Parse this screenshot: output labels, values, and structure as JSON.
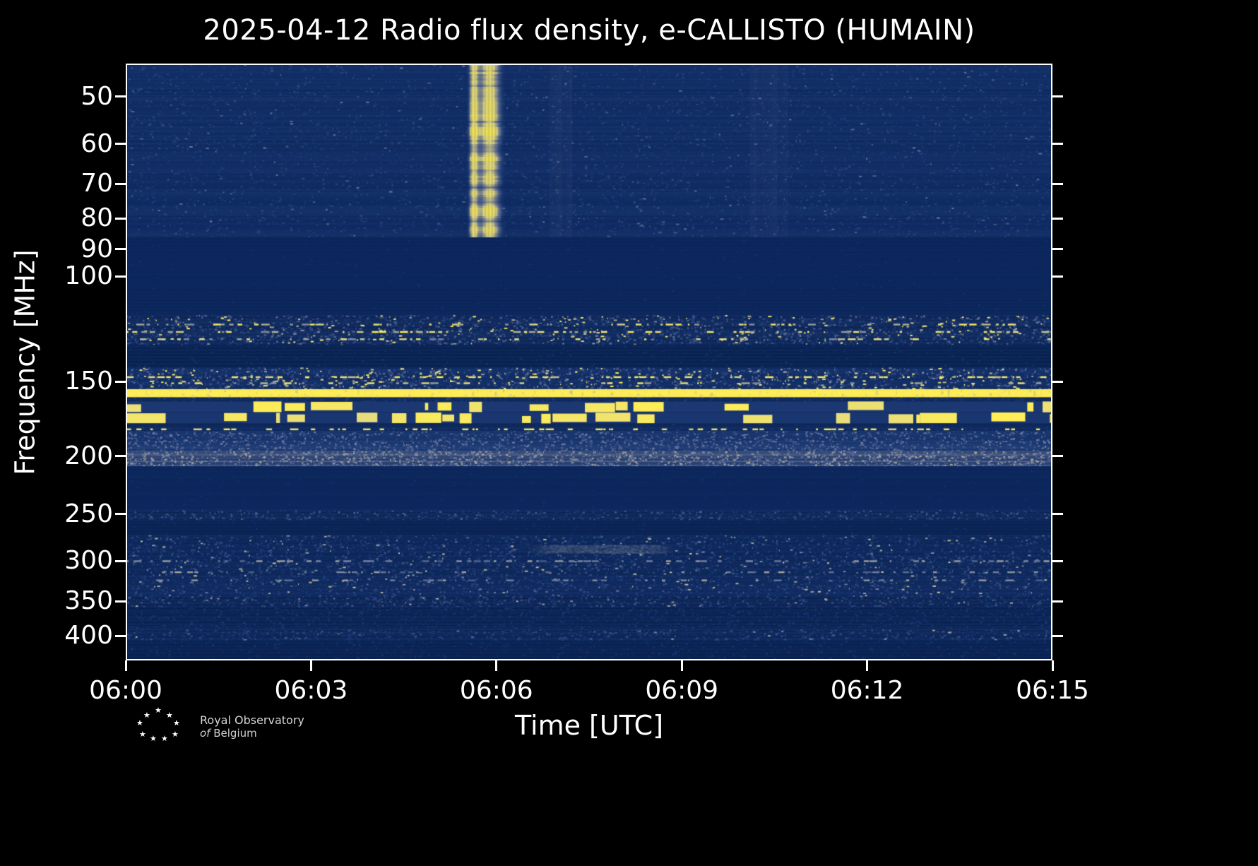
{
  "figure": {
    "title": "2025-04-12 Radio flux density, e-CALLISTO (HUMAIN)",
    "xlabel": "Time [UTC]",
    "ylabel": "Frequency [MHz]",
    "background": "#000000",
    "frame_color": "#ffffff",
    "text_color": "#ffffff"
  },
  "logo": {
    "name": "Royal Observatory of Belgium",
    "star_glyph": "★",
    "line1": "Royal Observatory",
    "line2_italic": "of",
    "line2_rest": "Belgium"
  },
  "chart_data": {
    "type": "heatmap",
    "subtype": "radio-spectrogram",
    "title": "2025-04-12 Radio flux density, e-CALLISTO (HUMAIN)",
    "xlabel": "Time [UTC]",
    "ylabel": "Frequency [MHz]",
    "legend": "none",
    "grid": false,
    "x_axis": {
      "range_minutes": [
        0,
        15
      ],
      "start_utc": "06:00",
      "end_utc": "06:15",
      "tick_minutes": [
        0,
        3,
        6,
        9,
        12,
        15
      ],
      "tick_labels": [
        "06:00",
        "06:03",
        "06:06",
        "06:09",
        "06:12",
        "06:15"
      ]
    },
    "y_axis": {
      "scale": "log",
      "range_mhz": [
        44,
        440
      ],
      "direction": "increasing-downward",
      "tick_labels_mhz": [
        50,
        60,
        70,
        80,
        90,
        100,
        150,
        200,
        250,
        300,
        350,
        400
      ]
    },
    "colormap": {
      "stops": [
        "#092459",
        "#1d3b76",
        "#7e86a4",
        "#e8dc7c",
        "#ffee55"
      ]
    },
    "bands": [
      {
        "name": "low-frequency mottled noise 44-86 MHz",
        "f": [
          44,
          86
        ],
        "base": 0.1,
        "row_jitter": 0.045,
        "noise": {
          "density": 0.25,
          "amp": 0.1
        },
        "speckles": {
          "density": 0.004,
          "t": [
            0.25,
            0.45
          ]
        }
      },
      {
        "name": "quiet 86-116 MHz",
        "f": [
          86,
          116
        ],
        "base": 0.05,
        "row_jitter": 0.012,
        "noise": {
          "density": 0.05,
          "amp": 0.04
        }
      },
      {
        "name": "interference band 116-130 MHz",
        "f": [
          116,
          130
        ],
        "base": 0.12,
        "row_jitter": 0.05,
        "noise": {
          "density": 0.5,
          "amp": 0.14
        },
        "speckles": {
          "density": 0.02,
          "t": [
            0.45,
            0.95
          ]
        },
        "dash_rows": [
          {
            "f": 120,
            "density": 0.45,
            "t": [
              0.5,
              0.95
            ]
          },
          {
            "f": 123.5,
            "density": 0.5,
            "t": [
              0.5,
              1.0
            ]
          },
          {
            "f": 127,
            "density": 0.35,
            "t": [
              0.45,
              0.85
            ]
          }
        ]
      },
      {
        "name": "quiet 130-142 MHz",
        "f": [
          130,
          142
        ],
        "base": 0.06,
        "row_jitter": 0.015,
        "noise": {
          "density": 0.08,
          "amp": 0.05
        }
      },
      {
        "name": "noise band 142-154 MHz",
        "f": [
          142,
          154.5
        ],
        "base": 0.13,
        "row_jitter": 0.05,
        "noise": {
          "density": 0.55,
          "amp": 0.15
        },
        "speckles": {
          "density": 0.03,
          "t": [
            0.5,
            1.0
          ]
        },
        "dash_rows": [
          {
            "f": 147,
            "density": 0.5,
            "t": [
              0.65,
              1.0
            ]
          },
          {
            "f": 150.5,
            "density": 0.3,
            "t": [
              0.5,
              0.9
            ]
          }
        ]
      },
      {
        "name": "continuous bright carrier ~157 MHz",
        "f": [
          154.5,
          159.5
        ],
        "style": "solid",
        "base": 0.96,
        "flicker": 0.25
      },
      {
        "name": "gap 159-162 MHz",
        "f": [
          159.5,
          162
        ],
        "base": 0.12,
        "row_jitter": 0.03,
        "noise": {
          "density": 0.3,
          "amp": 0.08
        }
      },
      {
        "name": "intermittent strong blocks 162-169 MHz",
        "f": [
          162,
          169
        ],
        "style": "blocks",
        "base": 0.22,
        "block_t": [
          0.78,
          1.0
        ],
        "on_prob": 0.55
      },
      {
        "name": "intermittent strong blocks 169-176 MHz",
        "f": [
          169,
          176.5
        ],
        "style": "blocks",
        "base": 0.2,
        "block_t": [
          0.75,
          1.0
        ],
        "on_prob": 0.5
      },
      {
        "name": "quiet sliver 176-178 MHz",
        "f": [
          176.5,
          178.5
        ],
        "base": 0.08,
        "row_jitter": 0.02,
        "noise": {
          "density": 0.1,
          "amp": 0.05
        }
      },
      {
        "name": "dashed carrier ~180 MHz",
        "f": [
          178.5,
          181.5
        ],
        "base": 0.1,
        "row_jitter": 0.02,
        "noise": {
          "density": 0.3,
          "amp": 0.08
        },
        "dash_rows": [
          {
            "f": 179.8,
            "density": 0.55,
            "t": [
              0.7,
              1.0
            ]
          }
        ]
      },
      {
        "name": "grey noise 182-196 MHz",
        "f": [
          181.5,
          196
        ],
        "base": 0.22,
        "row_jitter": 0.05,
        "noise": {
          "density": 0.6,
          "amp": 0.13
        }
      },
      {
        "name": "light grey noise band ~200 MHz",
        "f": [
          196,
          208
        ],
        "base": 0.33,
        "row_jitter": 0.05,
        "noise": {
          "density": 0.65,
          "amp": 0.14
        }
      },
      {
        "name": "quiet 208-246 MHz",
        "f": [
          208,
          246
        ],
        "base": 0.05,
        "row_jitter": 0.012,
        "noise": {
          "density": 0.05,
          "amp": 0.04
        }
      },
      {
        "name": "noise line ~250 MHz",
        "f": [
          246,
          256
        ],
        "base": 0.13,
        "row_jitter": 0.04,
        "noise": {
          "density": 0.45,
          "amp": 0.12
        }
      },
      {
        "name": "quiet 256-271 MHz",
        "f": [
          256,
          271
        ],
        "base": 0.05,
        "row_jitter": 0.012,
        "noise": {
          "density": 0.06,
          "amp": 0.04
        }
      },
      {
        "name": "speckled noise 271-341 MHz",
        "f": [
          271,
          341
        ],
        "base": 0.1,
        "row_jitter": 0.04,
        "noise": {
          "density": 0.45,
          "amp": 0.12
        },
        "speckles": {
          "density": 0.012,
          "t": [
            0.35,
            0.7
          ]
        },
        "dash_rows": [
          {
            "f": 299,
            "density": 0.6,
            "t": [
              0.35,
              0.6
            ]
          },
          {
            "f": 312,
            "density": 0.3,
            "t": [
              0.35,
              0.6
            ]
          },
          {
            "f": 322,
            "density": 0.3,
            "t": [
              0.35,
              0.6
            ]
          }
        ]
      },
      {
        "name": "noise band 341-358 MHz",
        "f": [
          341,
          358
        ],
        "base": 0.1,
        "row_jitter": 0.045,
        "noise": {
          "density": 0.5,
          "amp": 0.13
        },
        "speckles": {
          "density": 0.008,
          "t": [
            0.35,
            0.65
          ]
        }
      },
      {
        "name": "weak noise 358-390 MHz",
        "f": [
          358,
          390
        ],
        "base": 0.07,
        "row_jitter": 0.03,
        "noise": {
          "density": 0.3,
          "amp": 0.08
        }
      },
      {
        "name": "noise band ~400 MHz",
        "f": [
          390,
          407
        ],
        "base": 0.1,
        "row_jitter": 0.04,
        "noise": {
          "density": 0.5,
          "amp": 0.12
        },
        "speckles": {
          "density": 0.006,
          "t": [
            0.3,
            0.6
          ]
        }
      },
      {
        "name": "bottom quiet 407-440 MHz",
        "f": [
          407,
          440
        ],
        "base": 0.06,
        "row_jitter": 0.02,
        "noise": {
          "density": 0.15,
          "amp": 0.06
        }
      }
    ],
    "features": [
      {
        "type": "burst",
        "name": "bright solar radio burst ~06:05:40-06:06",
        "time": [
          5.3,
          6.35
        ],
        "f": [
          44,
          86
        ],
        "cores": [
          {
            "center_min": 5.62,
            "sigma_min": 0.055,
            "amp": 0.9
          },
          {
            "center_min": 5.88,
            "sigma_min": 0.13,
            "amp": 1.0
          }
        ]
      },
      {
        "type": "streak",
        "name": "faint horizontal emission ~285 MHz 06:06.5-06:09",
        "time": [
          6.5,
          8.9
        ],
        "f": [
          282,
          290
        ],
        "amp": 0.45
      },
      {
        "type": "vstripe",
        "name": "faint vertical enhancement ~06:07",
        "time": [
          6.85,
          7.2
        ],
        "f": [
          44,
          86
        ],
        "amp": 0.1
      },
      {
        "type": "vstripe",
        "name": "faint vertical enhancement ~06:10.5",
        "time": [
          10.1,
          10.7
        ],
        "f": [
          44,
          86
        ],
        "amp": 0.08
      }
    ]
  }
}
